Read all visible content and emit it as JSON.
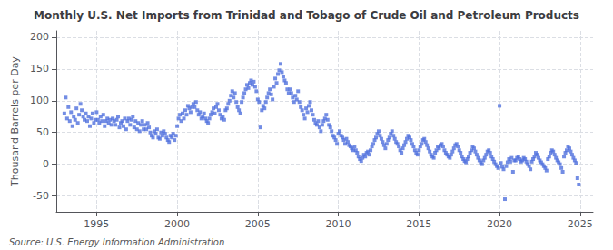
{
  "chart_data": {
    "type": "scatter",
    "title": "Monthly U.S. Net Imports from Trinidad and Tobago of Crude Oil and Petroleum Products",
    "ylabel": "Thousand Barrels per Day",
    "annotations": [
      "Source: U.S. Energy Information Administration"
    ],
    "marker": "square",
    "grid": true,
    "xlim": [
      1992.5,
      2025.8
    ],
    "xticks": [
      1995,
      2000,
      2005,
      2010,
      2015,
      2020,
      2025
    ],
    "ylim": [
      -75,
      210
    ],
    "yticks": [
      -50,
      0,
      50,
      100,
      150,
      200
    ],
    "x": [
      1993.0,
      1993.083,
      1993.167,
      1993.25,
      1993.333,
      1993.417,
      1993.5,
      1993.583,
      1993.667,
      1993.75,
      1993.833,
      1993.917,
      1994.0,
      1994.083,
      1994.167,
      1994.25,
      1994.333,
      1994.417,
      1994.5,
      1994.583,
      1994.667,
      1994.75,
      1994.833,
      1994.917,
      1995.0,
      1995.083,
      1995.167,
      1995.25,
      1995.333,
      1995.417,
      1995.5,
      1995.583,
      1995.667,
      1995.75,
      1995.833,
      1995.917,
      1996.0,
      1996.083,
      1996.167,
      1996.25,
      1996.333,
      1996.417,
      1996.5,
      1996.583,
      1996.667,
      1996.75,
      1996.833,
      1996.917,
      1997.0,
      1997.083,
      1997.167,
      1997.25,
      1997.333,
      1997.417,
      1997.5,
      1997.583,
      1997.667,
      1997.75,
      1997.833,
      1997.917,
      1998.0,
      1998.083,
      1998.167,
      1998.25,
      1998.333,
      1998.417,
      1998.5,
      1998.583,
      1998.667,
      1998.75,
      1998.833,
      1998.917,
      1999.0,
      1999.083,
      1999.167,
      1999.25,
      1999.333,
      1999.417,
      1999.5,
      1999.583,
      1999.667,
      1999.75,
      1999.833,
      1999.917,
      2000.0,
      2000.083,
      2000.167,
      2000.25,
      2000.333,
      2000.417,
      2000.5,
      2000.583,
      2000.667,
      2000.75,
      2000.833,
      2000.917,
      2001.0,
      2001.083,
      2001.167,
      2001.25,
      2001.333,
      2001.417,
      2001.5,
      2001.583,
      2001.667,
      2001.75,
      2001.833,
      2001.917,
      2002.0,
      2002.083,
      2002.167,
      2002.25,
      2002.333,
      2002.417,
      2002.5,
      2002.583,
      2002.667,
      2002.75,
      2002.833,
      2002.917,
      2003.0,
      2003.083,
      2003.167,
      2003.25,
      2003.333,
      2003.417,
      2003.5,
      2003.583,
      2003.667,
      2003.75,
      2003.833,
      2003.917,
      2004.0,
      2004.083,
      2004.167,
      2004.25,
      2004.333,
      2004.417,
      2004.5,
      2004.583,
      2004.667,
      2004.75,
      2004.833,
      2004.917,
      2005.0,
      2005.083,
      2005.167,
      2005.25,
      2005.333,
      2005.417,
      2005.5,
      2005.583,
      2005.667,
      2005.75,
      2005.833,
      2005.917,
      2006.0,
      2006.083,
      2006.167,
      2006.25,
      2006.333,
      2006.417,
      2006.5,
      2006.583,
      2006.667,
      2006.75,
      2006.833,
      2006.917,
      2007.0,
      2007.083,
      2007.167,
      2007.25,
      2007.333,
      2007.417,
      2007.5,
      2007.583,
      2007.667,
      2007.75,
      2007.833,
      2007.917,
      2008.0,
      2008.083,
      2008.167,
      2008.25,
      2008.333,
      2008.417,
      2008.5,
      2008.583,
      2008.667,
      2008.75,
      2008.833,
      2008.917,
      2009.0,
      2009.083,
      2009.167,
      2009.25,
      2009.333,
      2009.417,
      2009.5,
      2009.583,
      2009.667,
      2009.75,
      2009.833,
      2009.917,
      2010.0,
      2010.083,
      2010.167,
      2010.25,
      2010.333,
      2010.417,
      2010.5,
      2010.583,
      2010.667,
      2010.75,
      2010.833,
      2010.917,
      2011.0,
      2011.083,
      2011.167,
      2011.25,
      2011.333,
      2011.417,
      2011.5,
      2011.583,
      2011.667,
      2011.75,
      2011.833,
      2011.917,
      2012.0,
      2012.083,
      2012.167,
      2012.25,
      2012.333,
      2012.417,
      2012.5,
      2012.583,
      2012.667,
      2012.75,
      2012.833,
      2012.917,
      2013.0,
      2013.083,
      2013.167,
      2013.25,
      2013.333,
      2013.417,
      2013.5,
      2013.583,
      2013.667,
      2013.75,
      2013.833,
      2013.917,
      2014.0,
      2014.083,
      2014.167,
      2014.25,
      2014.333,
      2014.417,
      2014.5,
      2014.583,
      2014.667,
      2014.75,
      2014.833,
      2014.917,
      2015.0,
      2015.083,
      2015.167,
      2015.25,
      2015.333,
      2015.417,
      2015.5,
      2015.583,
      2015.667,
      2015.75,
      2015.833,
      2015.917,
      2016.0,
      2016.083,
      2016.167,
      2016.25,
      2016.333,
      2016.417,
      2016.5,
      2016.583,
      2016.667,
      2016.75,
      2016.833,
      2016.917,
      2017.0,
      2017.083,
      2017.167,
      2017.25,
      2017.333,
      2017.417,
      2017.5,
      2017.583,
      2017.667,
      2017.75,
      2017.833,
      2017.917,
      2018.0,
      2018.083,
      2018.167,
      2018.25,
      2018.333,
      2018.417,
      2018.5,
      2018.583,
      2018.667,
      2018.75,
      2018.833,
      2018.917,
      2019.0,
      2019.083,
      2019.167,
      2019.25,
      2019.333,
      2019.417,
      2019.5,
      2019.583,
      2019.667,
      2019.75,
      2019.833,
      2019.917,
      2020.0,
      2020.083,
      2020.167,
      2020.25,
      2020.333,
      2020.417,
      2020.5,
      2020.583,
      2020.667,
      2020.75,
      2020.833,
      2020.917,
      2021.0,
      2021.083,
      2021.167,
      2021.25,
      2021.333,
      2021.417,
      2021.5,
      2021.583,
      2021.667,
      2021.75,
      2021.833,
      2021.917,
      2022.0,
      2022.083,
      2022.167,
      2022.25,
      2022.333,
      2022.417,
      2022.5,
      2022.583,
      2022.667,
      2022.75,
      2022.833,
      2022.917,
      2023.0,
      2023.083,
      2023.167,
      2023.25,
      2023.333,
      2023.417,
      2023.5,
      2023.583,
      2023.667,
      2023.75,
      2023.833,
      2023.917,
      2024.0,
      2024.083,
      2024.167,
      2024.25,
      2024.333,
      2024.417,
      2024.5,
      2024.583,
      2024.667,
      2024.75,
      2024.833,
      2024.917
    ],
    "values": [
      80,
      105,
      72,
      90,
      68,
      82,
      60,
      75,
      70,
      88,
      65,
      78,
      95,
      85,
      75,
      70,
      80,
      68,
      75,
      60,
      72,
      80,
      65,
      70,
      82,
      70,
      65,
      75,
      68,
      78,
      60,
      68,
      72,
      65,
      70,
      62,
      72,
      68,
      62,
      70,
      75,
      58,
      65,
      68,
      60,
      72,
      55,
      68,
      72,
      62,
      70,
      75,
      58,
      68,
      55,
      65,
      52,
      62,
      68,
      55,
      62,
      55,
      65,
      58,
      50,
      45,
      42,
      52,
      48,
      55,
      42,
      40,
      50,
      45,
      52,
      48,
      42,
      38,
      35,
      45,
      42,
      48,
      38,
      45,
      60,
      72,
      78,
      68,
      80,
      72,
      85,
      78,
      92,
      88,
      82,
      90,
      95,
      90,
      98,
      85,
      78,
      82,
      72,
      75,
      80,
      72,
      68,
      65,
      72,
      78,
      82,
      88,
      80,
      90,
      95,
      85,
      78,
      72,
      75,
      70,
      85,
      88,
      95,
      100,
      108,
      115,
      105,
      112,
      98,
      90,
      85,
      80,
      98,
      105,
      112,
      118,
      125,
      120,
      128,
      132,
      125,
      130,
      122,
      115,
      102,
      98,
      58,
      85,
      92,
      88,
      98,
      105,
      112,
      118,
      110,
      102,
      122,
      135,
      128,
      142,
      148,
      158,
      145,
      138,
      132,
      128,
      118,
      112,
      118,
      112,
      105,
      98,
      108,
      102,
      115,
      98,
      90,
      85,
      78,
      72,
      88,
      82,
      92,
      98,
      85,
      78,
      70,
      65,
      62,
      68,
      58,
      52,
      62,
      68,
      72,
      78,
      70,
      62,
      58,
      52,
      45,
      42,
      38,
      32,
      48,
      52,
      45,
      42,
      38,
      32,
      40,
      35,
      30,
      28,
      25,
      22,
      28,
      22,
      18,
      12,
      8,
      5,
      10,
      15,
      12,
      18,
      20,
      15,
      22,
      28,
      32,
      38,
      42,
      48,
      52,
      45,
      40,
      35,
      30,
      25,
      32,
      38,
      42,
      48,
      52,
      45,
      40,
      35,
      32,
      28,
      22,
      18,
      25,
      30,
      35,
      40,
      45,
      42,
      38,
      32,
      28,
      22,
      18,
      15,
      22,
      28,
      32,
      38,
      40,
      35,
      30,
      25,
      20,
      15,
      12,
      10,
      18,
      22,
      28,
      25,
      30,
      32,
      28,
      22,
      18,
      15,
      12,
      10,
      15,
      20,
      25,
      30,
      32,
      28,
      22,
      18,
      12,
      8,
      5,
      3,
      8,
      12,
      18,
      22,
      28,
      25,
      20,
      15,
      10,
      6,
      3,
      0,
      6,
      10,
      15,
      20,
      22,
      18,
      12,
      8,
      4,
      0,
      -3,
      -6,
      92,
      2,
      -4,
      -8,
      -55,
      -3,
      3,
      8,
      4,
      10,
      -12,
      6,
      6,
      10,
      12,
      8,
      4,
      6,
      10,
      8,
      4,
      0,
      -3,
      -8,
      4,
      8,
      12,
      18,
      15,
      10,
      6,
      3,
      0,
      -3,
      -6,
      -10,
      8,
      12,
      18,
      22,
      20,
      15,
      10,
      6,
      3,
      0,
      -6,
      -12,
      12,
      18,
      22,
      28,
      25,
      20,
      15,
      10,
      6,
      2,
      -22,
      -32
    ]
  }
}
